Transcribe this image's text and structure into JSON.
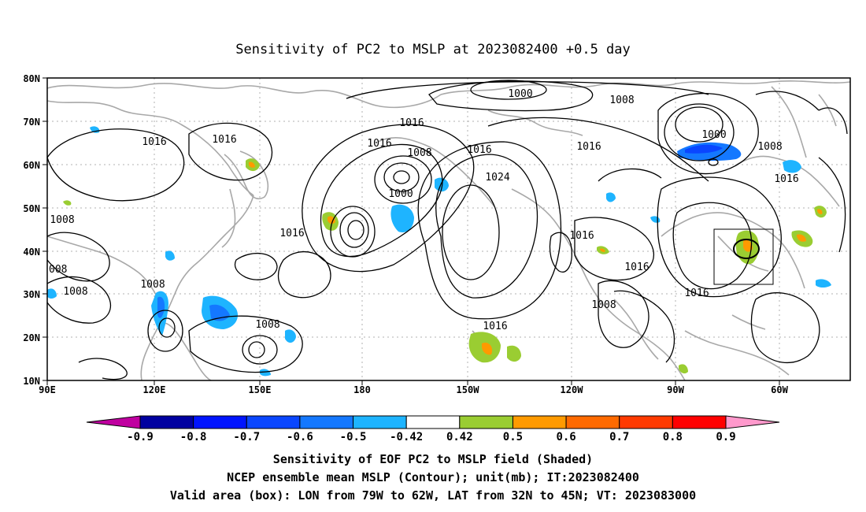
{
  "title": "Sensitivity of PC2 to MSLP at 2023082400 +0.5 day",
  "map": {
    "lat_ticks": [
      "80N",
      "70N",
      "60N",
      "50N",
      "40N",
      "30N",
      "20N",
      "10N"
    ],
    "lon_ticks": [
      "90E",
      "120E",
      "150E",
      "180",
      "150W",
      "120W",
      "90W",
      "60W"
    ],
    "lon_range": [
      "90E",
      "50W"
    ],
    "lat_range": [
      "10N",
      "80N"
    ],
    "gridlines": "dotted",
    "valid_box": {
      "lon_from": "79W",
      "lon_to": "62W",
      "lat_from": "32N",
      "lat_to": "45N"
    }
  },
  "contour_labels": [
    "1000",
    "1008",
    "1016",
    "1016",
    "1016",
    "1016",
    "1008",
    "1000",
    "1016",
    "1024",
    "1016",
    "1008",
    "1000",
    "1008",
    "1016",
    "1008",
    "008",
    "1008",
    "1008",
    "1016",
    "1016",
    "1016",
    "1008",
    "1016",
    "1016",
    "1016"
  ],
  "colorbar": {
    "ticks": [
      "-0.9",
      "-0.8",
      "-0.7",
      "-0.6",
      "-0.5",
      "-0.42",
      "0.42",
      "0.5",
      "0.6",
      "0.7",
      "0.8",
      "0.9"
    ],
    "colors": [
      "#c000a0",
      "#0000a0",
      "#0014ff",
      "#0a46ff",
      "#1478ff",
      "#1eb4ff",
      "#ffffff",
      "#9acd32",
      "#ff9a00",
      "#ff6a00",
      "#ff3a00",
      "#ff0000",
      "#ff99cc"
    ]
  },
  "captions": {
    "line1": "Sensitivity of EOF PC2 to MSLP field (Shaded)",
    "line2": "NCEP ensemble mean MSLP (Contour); unit(mb); IT:2023082400",
    "line3": "Valid area (box): LON from 79W to 62W, LAT from 32N to 45N; VT: 2023083000"
  }
}
